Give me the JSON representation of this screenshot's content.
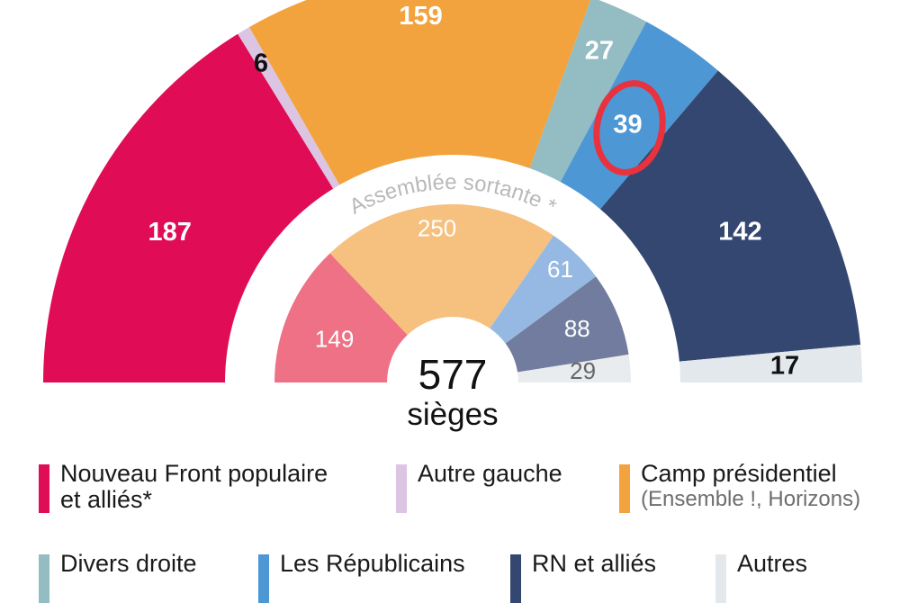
{
  "colors": {
    "nfp": "#e00c55",
    "autre_gauche": "#dcc5e2",
    "camp": "#f2a33e",
    "divers_droite": "#93bcc3",
    "lr": "#4d97d5",
    "rn": "#334770",
    "autres": "#e3e8ec",
    "highlight": "#e8323d"
  },
  "chart_data": [
    {
      "type": "pie",
      "variant": "parliament-hemicycle",
      "ring": "outer",
      "title": "",
      "categories": [
        "Nouveau Front populaire et alliés*",
        "Autre gauche",
        "Camp présidentiel",
        "Divers droite",
        "Les Républicains",
        "RN et alliés",
        "Autres"
      ],
      "values": [
        187,
        6,
        159,
        27,
        39,
        142,
        17
      ],
      "labels": [
        "187",
        "6",
        "159",
        "27",
        "39",
        "142",
        "17"
      ],
      "colors": [
        "#e00c55",
        "#dcc5e2",
        "#f2a33e",
        "#93bcc3",
        "#4d97d5",
        "#334770",
        "#e3e8ec"
      ],
      "label_colors": [
        "#ffffff",
        "#111111",
        "#ffffff",
        "#ffffff",
        "#ffffff",
        "#ffffff",
        "#111111"
      ],
      "highlighted_value": 39,
      "total": 577
    },
    {
      "type": "pie",
      "variant": "parliament-hemicycle",
      "ring": "inner",
      "title": "Assemblée sortante *",
      "categories": [
        "Nouveau Front populaire et alliés*",
        "Camp présidentiel",
        "Les Républicains",
        "RN et alliés",
        "Autres"
      ],
      "values": [
        149,
        250,
        61,
        88,
        29
      ],
      "labels": [
        "149",
        "250",
        "61",
        "88",
        "29"
      ],
      "colors": [
        "#ee7185",
        "#f6c07e",
        "#95b9e3",
        "#717c9e",
        "#e9ecee"
      ],
      "label_colors": [
        "#ffffff",
        "#ffffff",
        "#ffffff",
        "#ffffff",
        "#666666"
      ],
      "total": 577
    }
  ],
  "center": {
    "total": "577",
    "unit": "sièges"
  },
  "legend": [
    {
      "key": "nfp",
      "line1": "Nouveau Front populaire",
      "line2": "et alliés*",
      "sub": ""
    },
    {
      "key": "autre_gauche",
      "line1": "Autre gauche",
      "line2": "",
      "sub": ""
    },
    {
      "key": "camp",
      "line1": "Camp présidentiel",
      "line2": "",
      "sub": "(Ensemble !, Horizons)"
    },
    {
      "key": "divers_droite",
      "line1": "Divers droite",
      "line2": "",
      "sub": ""
    },
    {
      "key": "lr",
      "line1": "Les Républicains",
      "line2": "",
      "sub": ""
    },
    {
      "key": "rn",
      "line1": "RN et alliés",
      "line2": "",
      "sub": ""
    },
    {
      "key": "autres",
      "line1": "Autres",
      "line2": "",
      "sub": ""
    }
  ]
}
